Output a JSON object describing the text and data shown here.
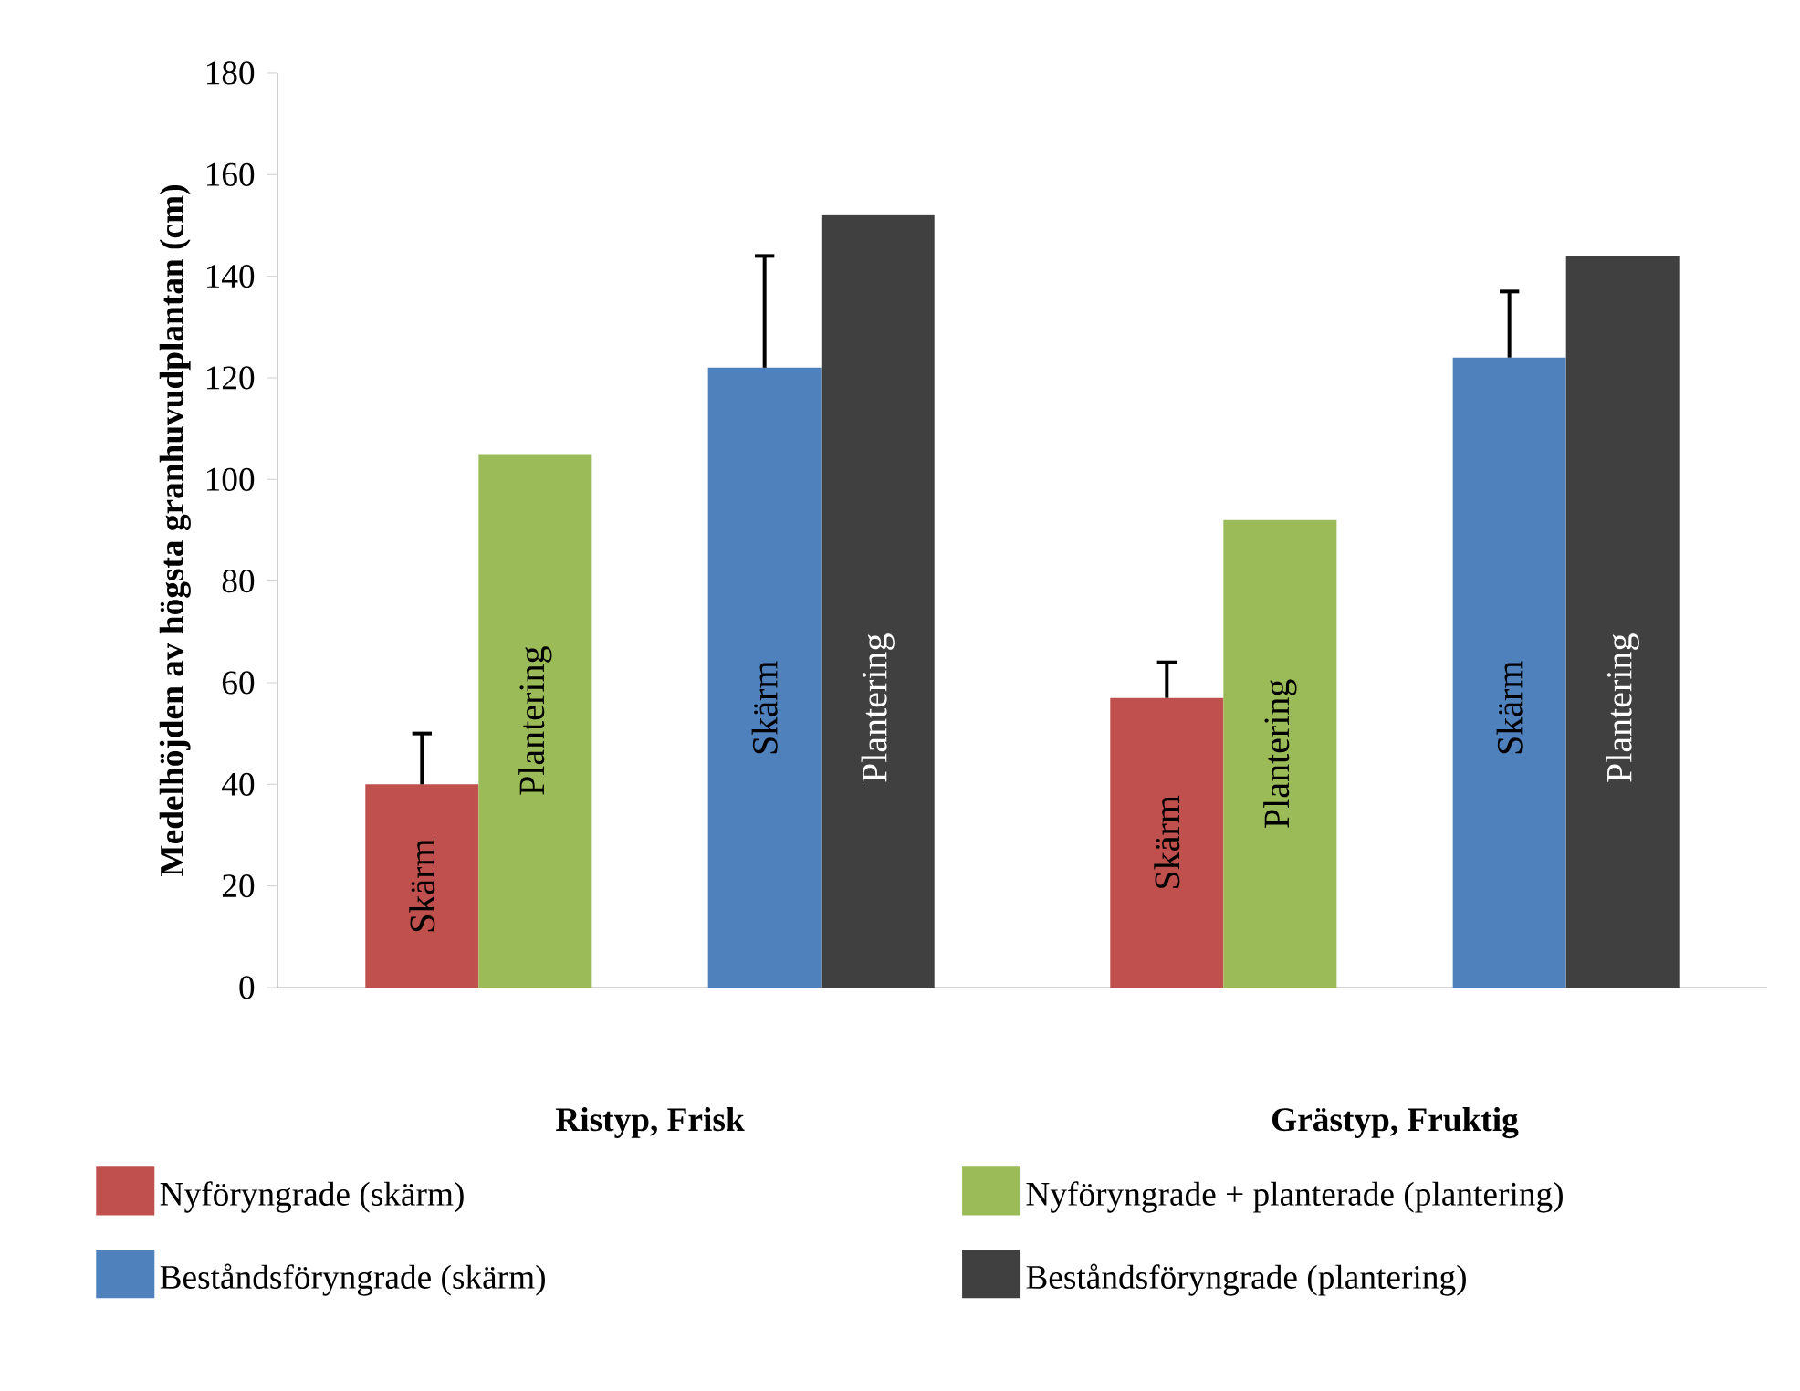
{
  "chart_data": {
    "type": "bar",
    "ylabel": "Medelhöjden av högsta granhuvudplantan (cm)",
    "categories": [
      "Ristyp, Frisk",
      "Grästyp, Fruktig"
    ],
    "series": [
      {
        "name": "Nyföryngrade (skärm)",
        "color": "#c0504d",
        "values": [
          40,
          57
        ],
        "errors": [
          [
            40,
            50
          ],
          [
            57,
            64
          ]
        ],
        "value_labels": [
          "Skärm",
          "Skärm"
        ]
      },
      {
        "name": "Nyföryngrade + planterade (plantering)",
        "color": "#9bbb59",
        "values": [
          105,
          92
        ],
        "value_labels": [
          "Plantering",
          "Plantering"
        ]
      },
      {
        "name": "Beståndsföryngrade (skärm)",
        "color": "#4f81bd",
        "values": [
          122,
          124
        ],
        "errors": [
          [
            122,
            144
          ],
          [
            124,
            137
          ]
        ],
        "value_labels": [
          "Skärm",
          "Skärm"
        ]
      },
      {
        "name": "Beståndsföryngrade (plantering)",
        "color": "#404040",
        "values": [
          152,
          144
        ],
        "value_labels": [
          "Plantering",
          "Plantering"
        ]
      }
    ],
    "ylim": [
      0,
      180
    ],
    "yticks": [
      0,
      20,
      40,
      60,
      80,
      100,
      120,
      140,
      160,
      180
    ],
    "legend": "bottom",
    "grid": false
  }
}
